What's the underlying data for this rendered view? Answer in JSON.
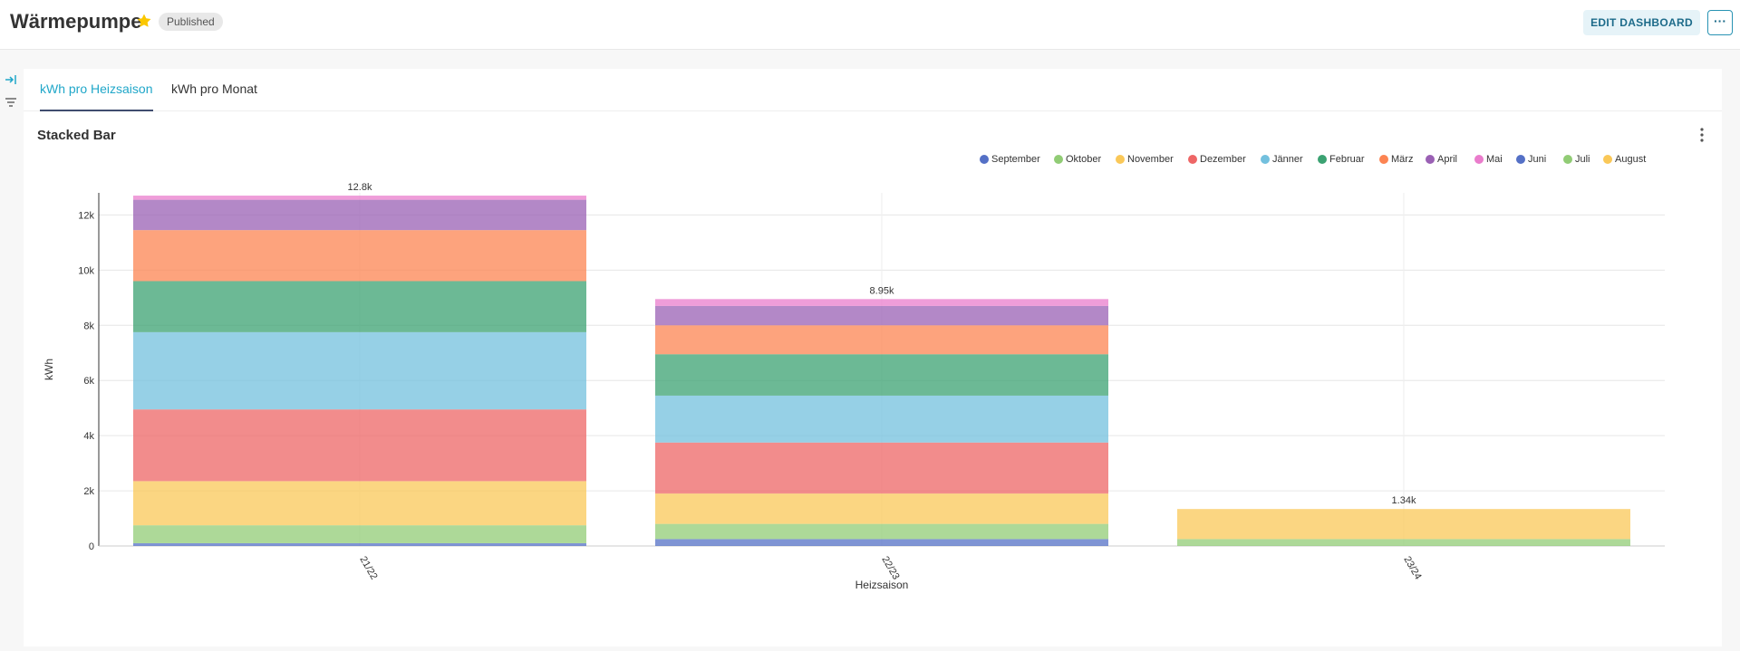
{
  "header": {
    "title": "Wärmepumpe",
    "status_badge": "Published",
    "edit_button": "EDIT DASHBOARD",
    "more_button": "···",
    "star_color": "#fbc700"
  },
  "sidebar": {
    "icons": [
      "expand-icon",
      "filter-icon"
    ]
  },
  "tabs": [
    {
      "label": "kWh pro Heizsaison",
      "active": true
    },
    {
      "label": "kWh pro Monat",
      "active": false
    }
  ],
  "chart_title": "Stacked Bar",
  "legend": [
    {
      "label": "September",
      "color": "#5470c6"
    },
    {
      "label": "Oktober",
      "color": "#91cc75"
    },
    {
      "label": "November",
      "color": "#fac858"
    },
    {
      "label": "Dezember",
      "color": "#ee6666"
    },
    {
      "label": "Jänner",
      "color": "#73c0de"
    },
    {
      "label": "Februar",
      "color": "#3ba272"
    },
    {
      "label": "März",
      "color": "#fc8452"
    },
    {
      "label": "April",
      "color": "#9a60b4"
    },
    {
      "label": "Mai",
      "color": "#ea7ccc"
    },
    {
      "label": "Juni",
      "color": "#5470c6"
    },
    {
      "label": "Juli",
      "color": "#91cc75"
    },
    {
      "label": "August",
      "color": "#fac858"
    }
  ],
  "chart_data": {
    "type": "bar",
    "stacked": true,
    "categories": [
      "21/22",
      "22/23",
      "23/24"
    ],
    "xlabel": "Heizsaison",
    "ylabel": "kWh",
    "ylim": [
      0,
      12800
    ],
    "yticks": [
      "0",
      "2k",
      "4k",
      "6k",
      "8k",
      "10k",
      "12k"
    ],
    "totals_labels": [
      "12.8k",
      "8.95k",
      "1.34k"
    ],
    "grid": true,
    "legend_position": "top-right",
    "series": [
      {
        "name": "September",
        "values": [
          100,
          250,
          0
        ]
      },
      {
        "name": "Oktober",
        "values": [
          650,
          550,
          250
        ]
      },
      {
        "name": "November",
        "values": [
          1600,
          1100,
          1090
        ]
      },
      {
        "name": "Dezember",
        "values": [
          2600,
          1850,
          0
        ]
      },
      {
        "name": "Jänner",
        "values": [
          2800,
          1700,
          0
        ]
      },
      {
        "name": "Februar",
        "values": [
          1850,
          1500,
          0
        ]
      },
      {
        "name": "März",
        "values": [
          1850,
          1050,
          0
        ]
      },
      {
        "name": "April",
        "values": [
          1100,
          700,
          0
        ]
      },
      {
        "name": "Mai",
        "values": [
          150,
          250,
          0
        ]
      },
      {
        "name": "Juni",
        "values": [
          0,
          0,
          0
        ]
      },
      {
        "name": "Juli",
        "values": [
          0,
          0,
          0
        ]
      },
      {
        "name": "August",
        "values": [
          0,
          0,
          0
        ]
      }
    ]
  }
}
